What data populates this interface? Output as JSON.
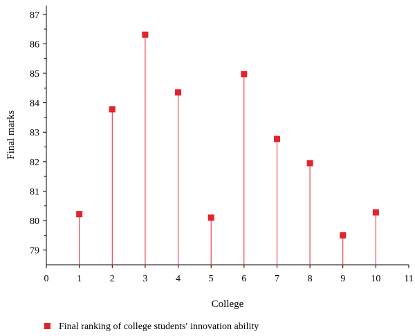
{
  "chart_data": {
    "type": "scatter",
    "style": "stem",
    "title": "",
    "xlabel": "College",
    "ylabel": "Final marks",
    "xlim": [
      0,
      11
    ],
    "ylim": [
      78.5,
      87.3
    ],
    "xticks": [
      0,
      1,
      2,
      3,
      4,
      5,
      6,
      7,
      8,
      9,
      10,
      11
    ],
    "yticks": [
      79,
      80,
      81,
      82,
      83,
      84,
      85,
      86,
      87
    ],
    "grid": false,
    "legend_position": "bottom-left",
    "colors": {
      "series": "#e4222b",
      "axis": "#000000"
    },
    "series": [
      {
        "name": "Final ranking of college students′ innovation ability",
        "x": [
          1,
          2,
          3,
          4,
          5,
          6,
          7,
          8,
          9,
          10
        ],
        "y": [
          80.22,
          83.78,
          86.31,
          84.35,
          80.1,
          84.97,
          82.77,
          81.95,
          79.5,
          80.28
        ]
      }
    ]
  }
}
